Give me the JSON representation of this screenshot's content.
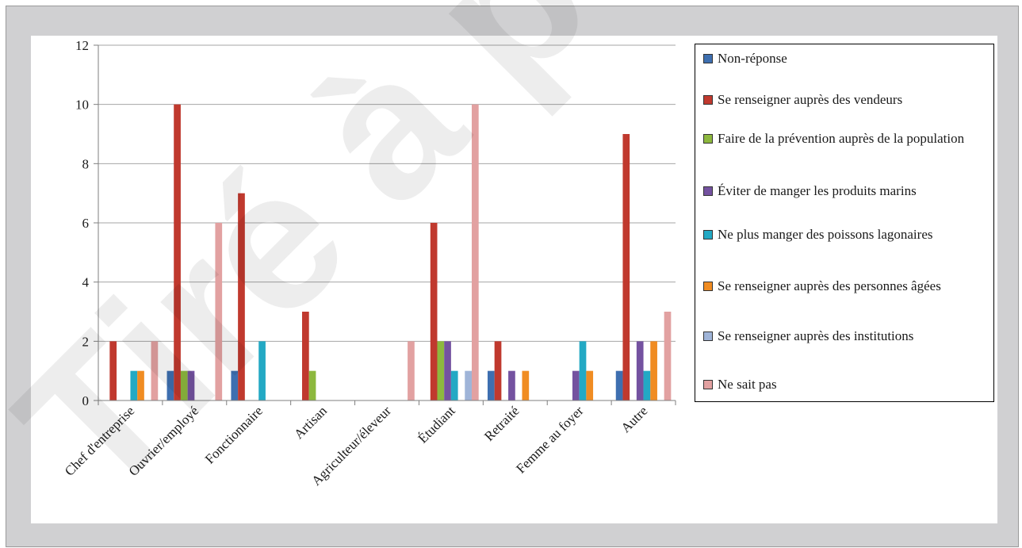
{
  "chart_data": {
    "type": "bar",
    "categories": [
      "Chef d'entreprise",
      "Ouvrier/employé",
      "Fonctionnaire",
      "Artisan",
      "Agriculteur/éleveur",
      "Étudiant",
      "Retraité",
      "Femme au foyer",
      "Autre"
    ],
    "ylim": [
      0,
      12
    ],
    "yticks": [
      0,
      2,
      4,
      6,
      8,
      10,
      12
    ],
    "grid": true,
    "legend_position": "right",
    "series": [
      {
        "name": "Non-réponse",
        "color": "#3e6fb0",
        "values": [
          0,
          1,
          1,
          0,
          0,
          0,
          1,
          0,
          1
        ]
      },
      {
        "name": "Se renseigner auprès des vendeurs",
        "color": "#c0392e",
        "values": [
          2,
          10,
          7,
          3,
          0,
          6,
          2,
          0,
          9
        ]
      },
      {
        "name": "Faire de la prévention auprès de la population",
        "color": "#8db83e",
        "values": [
          0,
          1,
          0,
          1,
          0,
          2,
          0,
          0,
          0
        ]
      },
      {
        "name": "Éviter de manger les produits marins",
        "color": "#7452a0",
        "values": [
          0,
          1,
          0,
          0,
          0,
          2,
          1,
          1,
          2
        ]
      },
      {
        "name": "Ne plus manger des poissons lagonaires",
        "color": "#23a9c4",
        "values": [
          1,
          0,
          2,
          0,
          0,
          1,
          0,
          2,
          1
        ]
      },
      {
        "name": "Se renseigner auprès des personnes âgées",
        "color": "#f08c22",
        "values": [
          1,
          0,
          0,
          0,
          0,
          0,
          1,
          1,
          2
        ]
      },
      {
        "name": "Se renseigner auprès des institutions",
        "color": "#9fb4d8",
        "values": [
          0,
          0,
          0,
          0,
          0,
          1,
          0,
          0,
          0
        ]
      },
      {
        "name": "Ne sait pas",
        "color": "#e2a1a1",
        "values": [
          2,
          6,
          0,
          0,
          2,
          10,
          0,
          0,
          3
        ]
      }
    ]
  },
  "watermark": {
    "text": "Tiré à part",
    "color": "#000000"
  }
}
